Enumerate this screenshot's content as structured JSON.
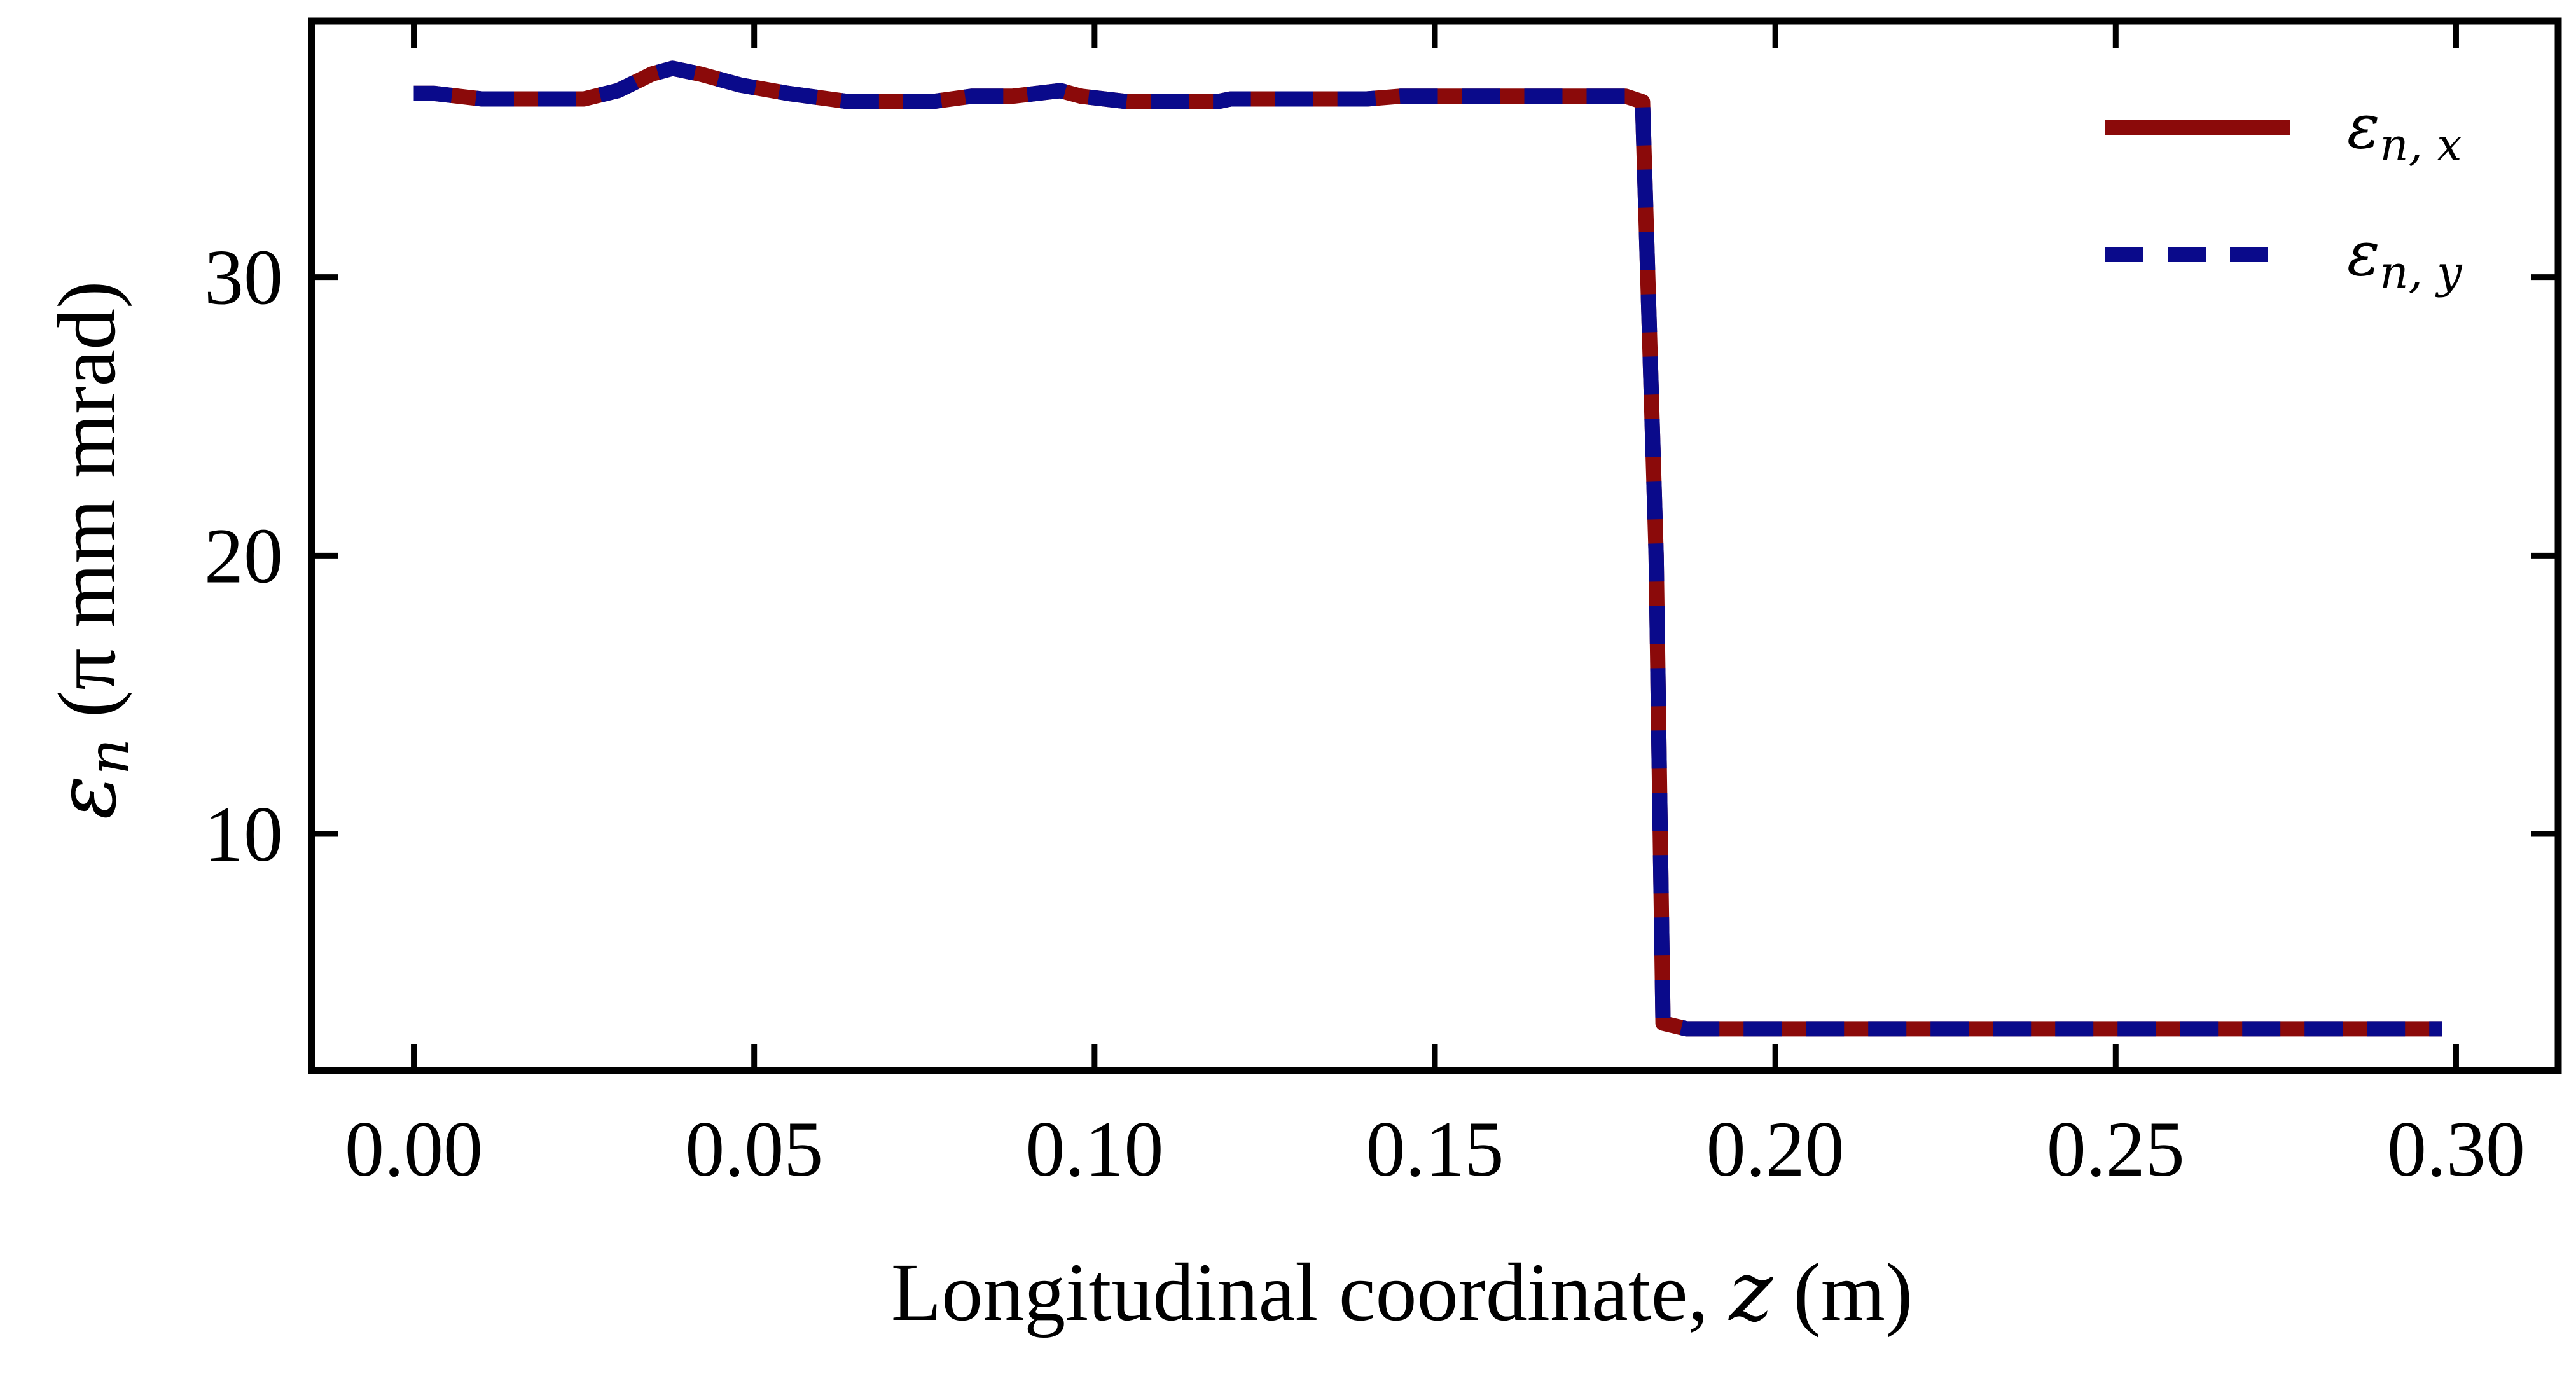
{
  "chart_data": {
    "type": "line",
    "xlabel": "Longitudinal coordinate, z (m)",
    "xlabel_prefix": "Longitudinal coordinate, ",
    "xlabel_var": "z",
    "xlabel_unit": " (m)",
    "ylabel": "εn (π mm mrad)",
    "ylabel_symbol": "ε",
    "ylabel_sub": "n",
    "ylabel_unit": " (π mm mrad)",
    "xlim": [
      -0.015,
      0.315
    ],
    "ylim": [
      1.5,
      39.2
    ],
    "xticks": [
      0.0,
      0.05,
      0.1,
      0.15,
      0.2,
      0.25,
      0.3
    ],
    "xtick_labels": [
      "0.00",
      "0.05",
      "0.10",
      "0.15",
      "0.20",
      "0.25",
      "0.30"
    ],
    "yticks": [
      10,
      20,
      30
    ],
    "ytick_labels": [
      "10",
      "20",
      "30"
    ],
    "grid": false,
    "legend_position": "top-right",
    "series": [
      {
        "name": "εn,x",
        "name_symbol": "ε",
        "name_sub": "n, x",
        "color": "#8b0a0a",
        "style": "solid",
        "x": [
          0.0,
          0.003,
          0.01,
          0.02,
          0.025,
          0.03,
          0.035,
          0.038,
          0.042,
          0.048,
          0.055,
          0.064,
          0.07,
          0.076,
          0.082,
          0.088,
          0.095,
          0.098,
          0.105,
          0.11,
          0.118,
          0.12,
          0.13,
          0.14,
          0.145,
          0.15,
          0.16,
          0.17,
          0.178,
          0.1805,
          0.1825,
          0.1835,
          0.187,
          0.19,
          0.2,
          0.25,
          0.298
        ],
        "y": [
          36.6,
          36.6,
          36.4,
          36.4,
          36.4,
          36.7,
          37.3,
          37.5,
          37.3,
          36.9,
          36.6,
          36.3,
          36.3,
          36.3,
          36.5,
          36.5,
          36.7,
          36.5,
          36.3,
          36.3,
          36.3,
          36.4,
          36.4,
          36.4,
          36.5,
          36.5,
          36.5,
          36.5,
          36.5,
          36.3,
          20.0,
          3.2,
          3.0,
          3.0,
          3.0,
          3.0,
          3.0
        ]
      },
      {
        "name": "εn,y",
        "name_symbol": "ε",
        "name_sub": "n, y",
        "color": "#0a0a8b",
        "style": "dashed",
        "x": [
          0.0,
          0.003,
          0.01,
          0.02,
          0.025,
          0.03,
          0.035,
          0.038,
          0.042,
          0.048,
          0.055,
          0.064,
          0.07,
          0.076,
          0.082,
          0.088,
          0.095,
          0.098,
          0.105,
          0.11,
          0.118,
          0.12,
          0.13,
          0.14,
          0.145,
          0.15,
          0.16,
          0.17,
          0.178,
          0.1805,
          0.1825,
          0.1835,
          0.187,
          0.19,
          0.2,
          0.25,
          0.298
        ],
        "y": [
          36.6,
          36.6,
          36.4,
          36.4,
          36.4,
          36.7,
          37.3,
          37.5,
          37.3,
          36.9,
          36.6,
          36.3,
          36.3,
          36.3,
          36.5,
          36.5,
          36.7,
          36.5,
          36.3,
          36.3,
          36.3,
          36.4,
          36.4,
          36.4,
          36.5,
          36.5,
          36.5,
          36.5,
          36.5,
          36.3,
          20.0,
          3.2,
          3.0,
          3.0,
          3.0,
          3.0,
          3.0
        ]
      }
    ]
  }
}
